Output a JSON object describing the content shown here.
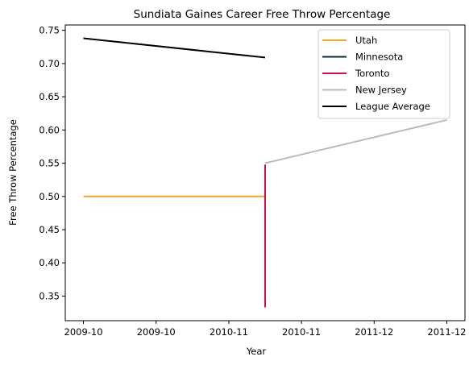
{
  "chart_data": {
    "type": "line",
    "title": "Sundiata Gaines Career Free Throw Percentage",
    "xlabel": "Year",
    "ylabel": "Free Throw Percentage",
    "xlim": [
      -0.1,
      2.1
    ],
    "ylim": [
      0.313,
      0.758
    ],
    "x_ticks": [
      {
        "pos": 0.0,
        "label": "2009-10"
      },
      {
        "pos": 0.4,
        "label": "2009-10"
      },
      {
        "pos": 0.8,
        "label": "2010-11"
      },
      {
        "pos": 1.2,
        "label": "2010-11"
      },
      {
        "pos": 1.6,
        "label": "2011-12"
      },
      {
        "pos": 2.0,
        "label": "2011-12"
      }
    ],
    "y_ticks": [
      0.35,
      0.4,
      0.45,
      0.5,
      0.55,
      0.6,
      0.65,
      0.7,
      0.75
    ],
    "y_tick_labels": [
      "0.35",
      "0.40",
      "0.45",
      "0.50",
      "0.55",
      "0.60",
      "0.65",
      "0.70",
      "0.75"
    ],
    "legend_position": "top-right",
    "grid": false,
    "series": [
      {
        "name": "Utah",
        "color": "#F5A623",
        "x": [
          0.0,
          1.0
        ],
        "y": [
          0.5,
          0.5
        ]
      },
      {
        "name": "Minnesota",
        "color": "#0C2433",
        "x": [],
        "y": []
      },
      {
        "name": "Toronto",
        "color": "#CE1141",
        "x": [
          1.0,
          1.0
        ],
        "y": [
          0.333,
          0.548
        ]
      },
      {
        "name": "New Jersey",
        "color": "#BBBBBB",
        "x": [
          1.0,
          2.0
        ],
        "y": [
          0.55,
          0.615
        ]
      },
      {
        "name": "League Average",
        "color": "#000000",
        "x": [
          0.0,
          1.0
        ],
        "y": [
          0.738,
          0.709
        ]
      }
    ]
  }
}
